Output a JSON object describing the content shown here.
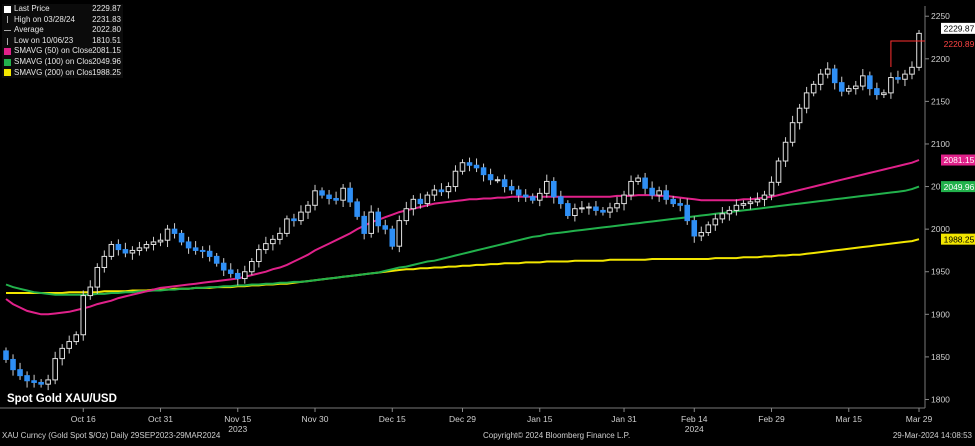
{
  "title": "Spot Gold XAU/USD",
  "legend": [
    {
      "label": "Last Price",
      "value": "2229.87",
      "color": "#ffffff",
      "marker": "box"
    },
    {
      "label": "High on 03/28/24",
      "value": "2231.83",
      "color": "#aaaaaa",
      "marker": "tick"
    },
    {
      "label": "Average",
      "value": "2022.80",
      "color": "#aaaaaa",
      "marker": "dash"
    },
    {
      "label": "Low on 10/06/23",
      "value": "1810.51",
      "color": "#aaaaaa",
      "marker": "tick"
    },
    {
      "label": "SMAVG (50)  on Close",
      "value": "2081.15",
      "color": "#e0218a",
      "marker": "box"
    },
    {
      "label": "SMAVG (100)  on Close",
      "value": "2049.96",
      "color": "#22b14c",
      "marker": "box"
    },
    {
      "label": "SMAVG (200)  on Close",
      "value": "1988.25",
      "color": "#f2e600",
      "marker": "box"
    }
  ],
  "footer": {
    "left": "XAU Curncy (Gold Spot  $/Oz)  Daily 29SEP2023-29MAR2024",
    "center": "Copyright© 2024 Bloomberg Finance L.P.",
    "right": "29-Mar-2024 14:08:53"
  },
  "chart_data": {
    "type": "candlestick",
    "x_tick_labels": [
      "Oct 16",
      "Oct 31",
      "Nov 15",
      "Nov 30",
      "Dec 15",
      "Dec 29",
      "Jan 15",
      "Jan 31",
      "Feb 14",
      "Feb 29",
      "Mar 15",
      "Mar 29"
    ],
    "x_tick_index": [
      11,
      22,
      33,
      44,
      55,
      65,
      76,
      88,
      98,
      109,
      120,
      130
    ],
    "year_labels": [
      {
        "label": "2023",
        "index": 33
      },
      {
        "label": "2024",
        "index": 98
      }
    ],
    "y_ticks": [
      1800,
      1850,
      1900,
      1950,
      2000,
      2050,
      2100,
      2150,
      2200,
      2250
    ],
    "ylim": [
      1790,
      2262
    ],
    "value_tags": [
      {
        "value": 2229.87,
        "label": "2229.87",
        "bg": "#ffffff",
        "fg": "#000000"
      },
      {
        "value": 2220.89,
        "label": "2220.89",
        "bg": "#000000",
        "fg": "#ff4444"
      },
      {
        "value": 2081.15,
        "label": "2081.15",
        "bg": "#e0218a",
        "fg": "#ffffff"
      },
      {
        "value": 2049.96,
        "label": "2049.96",
        "bg": "#22b14c",
        "fg": "#ffffff"
      },
      {
        "value": 1988.25,
        "label": "1988.25",
        "bg": "#f2e600",
        "fg": "#000000"
      }
    ],
    "high_marker": {
      "value": 2220.89,
      "from_index": 126,
      "color": "#ff3030"
    },
    "closes": [
      1847,
      1835,
      1828,
      1822,
      1820,
      1818,
      1823,
      1848,
      1860,
      1868,
      1876,
      1922,
      1932,
      1955,
      1968,
      1982,
      1976,
      1972,
      1975,
      1978,
      1982,
      1985,
      1987,
      2000,
      1995,
      1985,
      1978,
      1975,
      1974,
      1968,
      1960,
      1952,
      1948,
      1942,
      1950,
      1962,
      1976,
      1983,
      1988,
      1995,
      2012,
      2010,
      2020,
      2028,
      2045,
      2040,
      2036,
      2034,
      2048,
      2032,
      2015,
      1995,
      2020,
      2004,
      2000,
      1980,
      2010,
      2024,
      2035,
      2030,
      2040,
      2046,
      2044,
      2050,
      2068,
      2078,
      2075,
      2072,
      2064,
      2058,
      2058,
      2050,
      2046,
      2040,
      2038,
      2034,
      2042,
      2056,
      2038,
      2030,
      2016,
      2024,
      2025,
      2026,
      2022,
      2020,
      2025,
      2030,
      2040,
      2056,
      2060,
      2048,
      2040,
      2045,
      2035,
      2030,
      2028,
      2010,
      1992,
      1996,
      2005,
      2012,
      2018,
      2022,
      2028,
      2030,
      2032,
      2035,
      2040,
      2055,
      2080,
      2102,
      2125,
      2142,
      2160,
      2170,
      2182,
      2188,
      2172,
      2162,
      2165,
      2168,
      2180,
      2165,
      2158,
      2160,
      2178,
      2176,
      2182,
      2190,
      2229.87
    ],
    "sma50": [
      1918,
      1912,
      1908,
      1904,
      1902,
      1900,
      1900,
      1901,
      1902,
      1903,
      1905,
      1907,
      1909,
      1912,
      1914,
      1916,
      1919,
      1921,
      1923,
      1925,
      1927,
      1929,
      1931,
      1932,
      1933,
      1934,
      1935,
      1936,
      1937,
      1938,
      1939,
      1940,
      1941,
      1942,
      1944,
      1946,
      1948,
      1950,
      1953,
      1955,
      1958,
      1962,
      1966,
      1970,
      1975,
      1979,
      1983,
      1987,
      1991,
      1995,
      2000,
      2004,
      2008,
      2011,
      2014,
      2017,
      2020,
      2022,
      2024,
      2026,
      2028,
      2030,
      2031,
      2032,
      2033,
      2034,
      2035,
      2035,
      2036,
      2036,
      2037,
      2037,
      2038,
      2038,
      2038,
      2038,
      2038,
      2038,
      2038,
      2038,
      2038,
      2038,
      2038,
      2038,
      2038,
      2038,
      2038,
      2039,
      2039,
      2039,
      2040,
      2040,
      2040,
      2039,
      2039,
      2038,
      2037,
      2036,
      2035,
      2034,
      2034,
      2034,
      2034,
      2034,
      2034,
      2035,
      2035,
      2036,
      2037,
      2038,
      2040,
      2042,
      2044,
      2046,
      2048,
      2050,
      2052,
      2054,
      2056,
      2058,
      2060,
      2062,
      2064,
      2066,
      2068,
      2070,
      2072,
      2074,
      2076,
      2078,
      2081.15
    ],
    "sma100": [
      1935,
      1932,
      1930,
      1928,
      1926,
      1925,
      1924,
      1923,
      1923,
      1923,
      1923,
      1923,
      1923,
      1924,
      1924,
      1925,
      1925,
      1926,
      1926,
      1927,
      1927,
      1928,
      1928,
      1929,
      1929,
      1930,
      1930,
      1931,
      1931,
      1932,
      1932,
      1933,
      1933,
      1934,
      1934,
      1935,
      1935,
      1936,
      1936,
      1937,
      1937,
      1938,
      1938,
      1939,
      1940,
      1941,
      1942,
      1943,
      1944,
      1945,
      1946,
      1947,
      1948,
      1949,
      1951,
      1953,
      1955,
      1956,
      1958,
      1960,
      1962,
      1963,
      1965,
      1967,
      1969,
      1971,
      1973,
      1975,
      1977,
      1979,
      1981,
      1983,
      1985,
      1987,
      1989,
      1991,
      1992,
      1994,
      1995,
      1996,
      1997,
      1998,
      1999,
      2000,
      2001,
      2002,
      2003,
      2004,
      2005,
      2006,
      2007,
      2008,
      2009,
      2010,
      2011,
      2012,
      2013,
      2014,
      2015,
      2016,
      2017,
      2018,
      2019,
      2020,
      2021,
      2022,
      2023,
      2024,
      2025,
      2026,
      2027,
      2028,
      2029,
      2030,
      2031,
      2032,
      2033,
      2034,
      2035,
      2036,
      2037,
      2038,
      2039,
      2040,
      2041,
      2042,
      2043,
      2044,
      2045,
      2047,
      2049.96
    ],
    "sma200": [
      1925,
      1925,
      1925,
      1925,
      1925,
      1925,
      1925,
      1925,
      1925,
      1926,
      1926,
      1926,
      1926,
      1926,
      1927,
      1927,
      1927,
      1927,
      1928,
      1928,
      1928,
      1929,
      1929,
      1929,
      1930,
      1930,
      1930,
      1931,
      1931,
      1931,
      1932,
      1932,
      1932,
      1933,
      1933,
      1934,
      1934,
      1935,
      1935,
      1936,
      1936,
      1937,
      1938,
      1939,
      1940,
      1941,
      1942,
      1943,
      1944,
      1945,
      1946,
      1947,
      1948,
      1949,
      1950,
      1951,
      1952,
      1953,
      1953,
      1954,
      1954,
      1955,
      1955,
      1956,
      1956,
      1957,
      1957,
      1958,
      1958,
      1959,
      1959,
      1960,
      1960,
      1960,
      1961,
      1961,
      1961,
      1962,
      1962,
      1962,
      1962,
      1963,
      1963,
      1963,
      1963,
      1963,
      1964,
      1964,
      1964,
      1964,
      1964,
      1964,
      1965,
      1965,
      1965,
      1965,
      1965,
      1965,
      1965,
      1965,
      1965,
      1966,
      1966,
      1966,
      1966,
      1967,
      1967,
      1967,
      1968,
      1968,
      1969,
      1969,
      1970,
      1970,
      1971,
      1972,
      1973,
      1974,
      1975,
      1976,
      1977,
      1978,
      1979,
      1980,
      1981,
      1982,
      1983,
      1984,
      1985,
      1986,
      1988.25
    ]
  }
}
